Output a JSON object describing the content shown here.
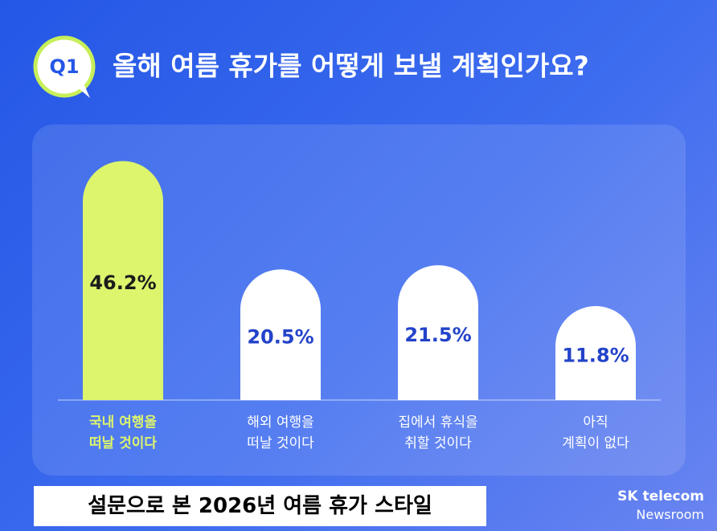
{
  "chart_data": {
    "type": "bar",
    "badge": "Q1",
    "title": "올해 여름 휴가를 어떻게 보낼 계획인가요?",
    "categories": [
      "국내 여행을\n떠날 것이다",
      "해외 여행을\n떠날 것이다",
      "집에서 휴식을\n취할 것이다",
      "아직\n계획이 없다"
    ],
    "values": [
      46.2,
      20.5,
      21.5,
      11.8
    ],
    "value_labels": [
      "46.2%",
      "20.5%",
      "21.5%",
      "11.8%"
    ],
    "colors": [
      "#dcf56c",
      "#ffffff",
      "#ffffff",
      "#ffffff"
    ]
  },
  "footer": {
    "caption": "설문으로 본 2026년 여름 휴가 스타일",
    "brand": "SK telecom",
    "brand_sub": "Newsroom"
  }
}
